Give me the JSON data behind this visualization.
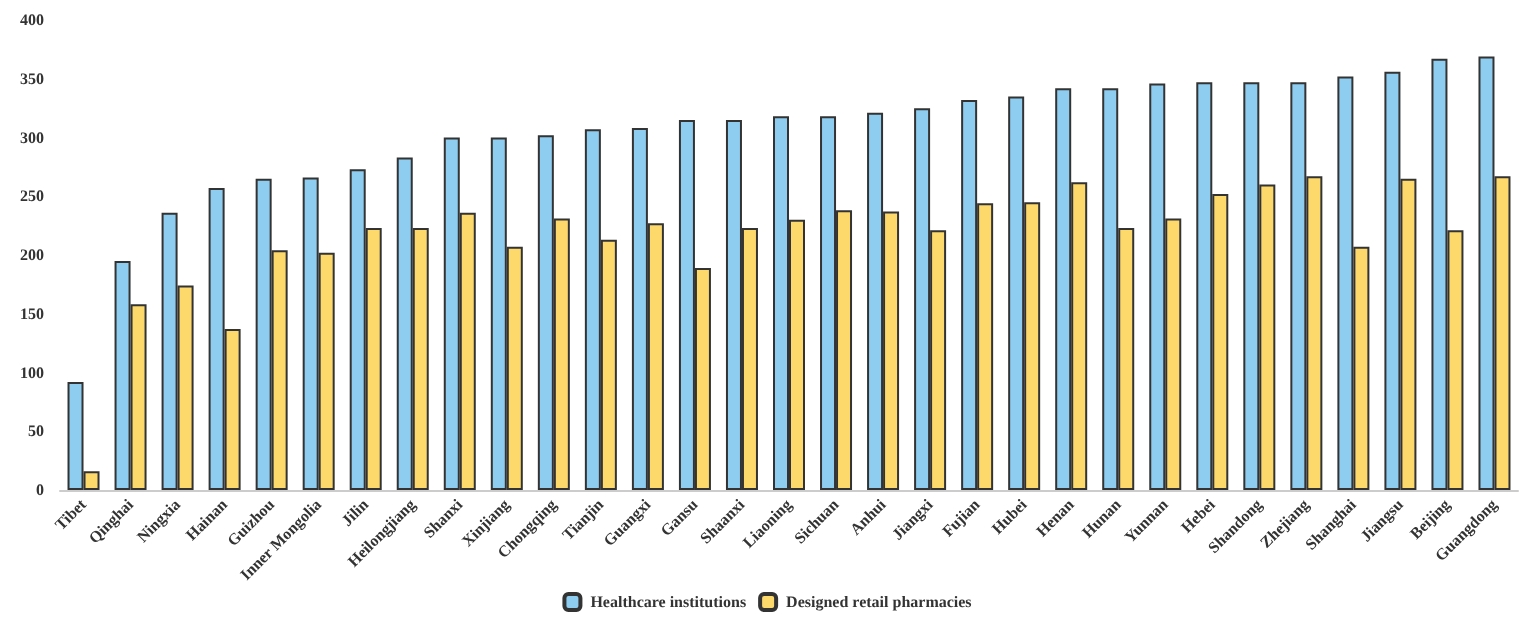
{
  "chart_data": {
    "type": "bar",
    "categories": [
      "Tibet",
      "Qinghai",
      "Ningxia",
      "Hainan",
      "Guizhou",
      "Inner Mongolia",
      "Jilin",
      "Heilongjiang",
      "Shanxi",
      "Xinjiang",
      "Chongqing",
      "Tianjin",
      "Guangxi",
      "Gansu",
      "Shaanxi",
      "Liaoning",
      "Sichuan",
      "Anhui",
      "Jiangxi",
      "Fujian",
      "Hubei",
      "Henan",
      "Hunan",
      "Yunnan",
      "Hebei",
      "Shandong",
      "Zhejiang",
      "Shanghai",
      "Jiangsu",
      "Beijing",
      "Guangdong"
    ],
    "series": [
      {
        "name": "Healthcare institutions",
        "color": "#8ecdf0",
        "values": [
          92,
          195,
          236,
          257,
          265,
          266,
          273,
          283,
          300,
          300,
          302,
          307,
          308,
          315,
          315,
          318,
          318,
          321,
          325,
          332,
          335,
          342,
          342,
          346,
          347,
          347,
          347,
          352,
          356,
          367,
          369
        ]
      },
      {
        "name": "Designed retail pharmacies",
        "color": "#fdd96c",
        "values": [
          16,
          158,
          174,
          137,
          204,
          202,
          223,
          223,
          236,
          207,
          231,
          213,
          227,
          189,
          223,
          230,
          238,
          237,
          221,
          244,
          245,
          262,
          223,
          231,
          252,
          260,
          267,
          207,
          265,
          221,
          267
        ]
      }
    ],
    "ylim": [
      0,
      400
    ],
    "yticks": [
      0,
      50,
      100,
      150,
      200,
      250,
      300,
      350,
      400
    ],
    "grid": false,
    "legend": "bottom"
  }
}
